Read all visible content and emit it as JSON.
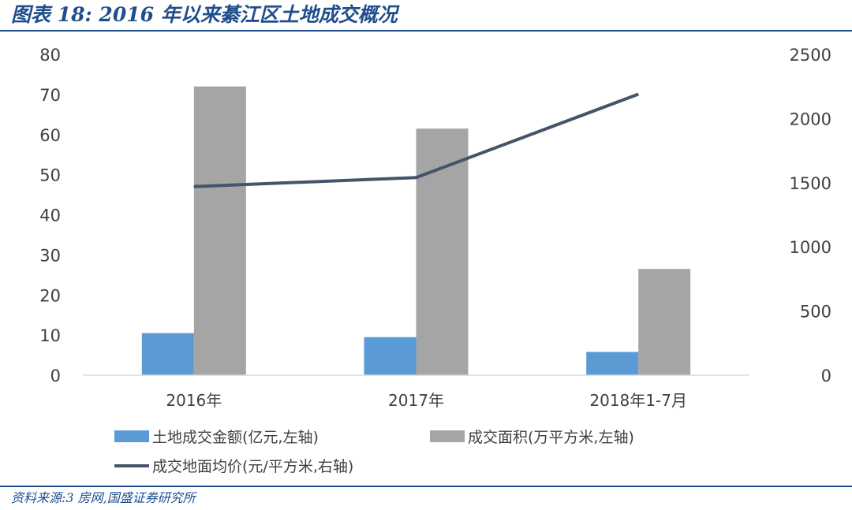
{
  "header": {
    "title": "图表 18:  2016 年以来綦江区土地成交概况"
  },
  "footer": {
    "source": "资料来源:3 房网,国盛证券研究所"
  },
  "chart_data": {
    "type": "bar",
    "categories": [
      "2016年",
      "2017年",
      "2018年1-7月"
    ],
    "left_axis": {
      "ylim": [
        0,
        80
      ],
      "ticks": [
        0,
        10,
        20,
        30,
        40,
        50,
        60,
        70,
        80
      ]
    },
    "right_axis": {
      "ylim": [
        0,
        2500
      ],
      "ticks": [
        0,
        500,
        1000,
        1500,
        2000,
        2500
      ]
    },
    "series": [
      {
        "name": "土地成交金额(亿元,左轴)",
        "type": "bar",
        "axis": "left",
        "color": "#5b9bd5",
        "values": [
          10.5,
          9.5,
          5.8
        ]
      },
      {
        "name": "成交面积(万平方米,左轴)",
        "type": "bar",
        "axis": "left",
        "color": "#a5a5a5",
        "values": [
          72,
          61.5,
          26.5
        ]
      },
      {
        "name": "成交地面均价(元/平方米,右轴)",
        "type": "line",
        "axis": "right",
        "color": "#44546a",
        "values": [
          1470,
          1540,
          2190
        ]
      }
    ],
    "grid": false,
    "legend_position": "bottom"
  }
}
